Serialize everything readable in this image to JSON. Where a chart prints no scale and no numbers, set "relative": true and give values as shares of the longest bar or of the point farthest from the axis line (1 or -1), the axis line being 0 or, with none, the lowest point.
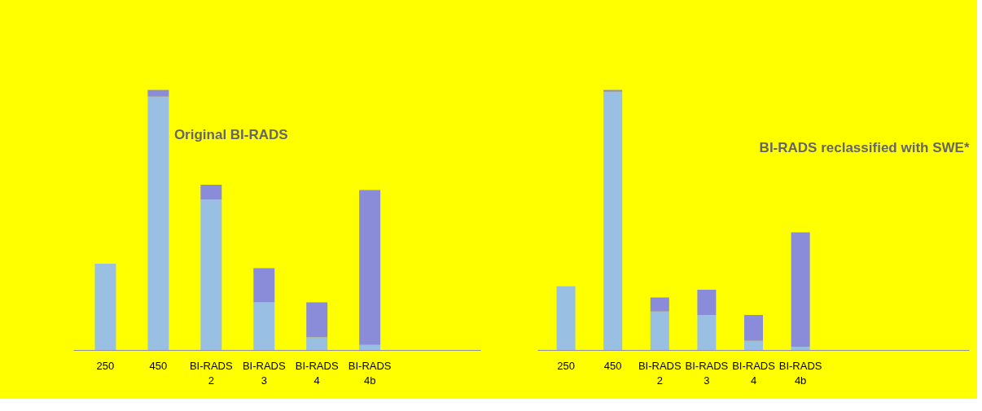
{
  "chart_data": [
    {
      "type": "bar",
      "stacked": true,
      "relative": true,
      "categories": [
        "250",
        "450",
        "BI-RADS 2",
        "BI-RADS 3",
        "BI-RADS 4",
        "BI-RADS 4b"
      ],
      "series": [
        {
          "color": "#99bfe3",
          "values": [
            0.333,
            0.974,
            0.579,
            0.184,
            0.05,
            0.021
          ]
        },
        {
          "color": "#8a8cd9",
          "values": [
            0,
            0.026,
            0.057,
            0.132,
            0.134,
            0.595
          ]
        }
      ],
      "annotations": [
        "Original BI-RADS"
      ],
      "grid": false
    },
    {
      "type": "bar",
      "stacked": true,
      "relative": true,
      "categories": [
        "250",
        "450",
        "BI-RADS 2",
        "BI-RADS 3",
        "BI-RADS 4",
        "BI-RADS 4b"
      ],
      "series": [
        {
          "color": "#99bfe3",
          "values": [
            0.246,
            0.993,
            0.149,
            0.136,
            0.037,
            0.014
          ]
        },
        {
          "color": "#8a8cd9",
          "values": [
            0,
            0.007,
            0.054,
            0.097,
            0.099,
            0.439
          ]
        }
      ],
      "annotations": [
        "BI-RADS reclassified with SWE*"
      ],
      "grid": false
    }
  ]
}
